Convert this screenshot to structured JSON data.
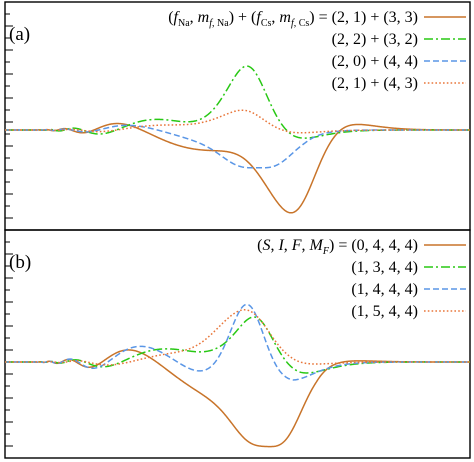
{
  "colors": {
    "c1": "#c8742a",
    "c2": "#28c814",
    "c3": "#5a96e6",
    "c4": "#e8763a"
  },
  "chart_data": [
    {
      "type": "line",
      "panel_label": "(a)",
      "legend_position": "top-right",
      "legend_header_html": "(<tspan font-style='italic'>f</tspan><tspan font-size='10' dy='4'>Na</tspan><tspan dy='-4'>, </tspan><tspan font-style='italic'>m</tspan><tspan font-size='10' dy='4'><tspan font-style='italic'>f</tspan>, Na</tspan><tspan dy='-4'>) + (</tspan><tspan font-style='italic'>f</tspan><tspan font-size='10' dy='4'>Cs</tspan><tspan dy='-4'>, </tspan><tspan font-style='italic'>m</tspan><tspan font-size='10' dy='4'><tspan font-style='italic'>f</tspan>, Cs</tspan><tspan dy='-4'>) = </tspan>",
      "x": [],
      "series": [
        {
          "name": "(2, 1) + (3, 3)",
          "legend_label": "(2, 1) + (3, 3)",
          "color": "#c8742a",
          "dash": "solid",
          "x_min_peak": 0.615,
          "min_value": -0.92,
          "extrema": [
            [
              0.465,
              0.42
            ],
            [
              0.4,
              -0.22
            ],
            [
              0.35,
              0.18
            ],
            [
              0.31,
              -0.14
            ]
          ]
        },
        {
          "name": "(2, 2) + (3, 2)",
          "legend_label": "(2, 2) + (3, 2)",
          "color": "#28c814",
          "dash": "dashdot",
          "x_min_peak": 0.52,
          "min_value": 0.71,
          "extrema": [
            [
              0.415,
              -0.22
            ],
            [
              0.37,
              0.18
            ]
          ]
        },
        {
          "name": "(2, 0) + (4, 4)",
          "legend_label": "(2, 0) + (4, 4)",
          "color": "#5a96e6",
          "dash": "dashed",
          "x_min_peak": 0.545,
          "min_value": -0.42,
          "extrema": [
            [
              0.45,
              0.17
            ],
            [
              0.4,
              -0.14
            ]
          ]
        },
        {
          "name": "(2, 1) + (4, 3)",
          "legend_label": "(2, 1) + (4, 3)",
          "color": "#e8763a",
          "dash": "dotted",
          "x_min_peak": 0.51,
          "min_value": 0.22,
          "extrema": [
            [
              0.43,
              -0.1
            ]
          ]
        }
      ]
    },
    {
      "type": "line",
      "panel_label": "(b)",
      "legend_position": "top-right",
      "legend_header_html": "(<tspan font-style='italic'>S</tspan>, <tspan font-style='italic'>I</tspan>, <tspan font-style='italic'>F</tspan>, <tspan font-style='italic'>M</tspan><tspan font-size='10' dy='4' font-style='italic'>F</tspan><tspan dy='-4'>) = </tspan>",
      "series": [
        {
          "name": "(0, 4, 4, 4)",
          "legend_label": "(0, 4, 4, 4)",
          "color": "#c8742a",
          "dash": "solid",
          "x_min_peak": 0.57,
          "min_value": -0.94
        },
        {
          "name": "(1, 3, 4, 4)",
          "legend_label": "(1, 3, 4, 4)",
          "color": "#28c814",
          "dash": "dashdot",
          "x_min_peak": 0.535,
          "min_value": 0.5
        },
        {
          "name": "(1, 4, 4, 4)",
          "legend_label": "(1, 4, 4, 4)",
          "color": "#5a96e6",
          "dash": "dashed",
          "x_min_peak": 0.52,
          "min_value": 0.64
        },
        {
          "name": "(1, 5, 4, 4)",
          "legend_label": "(1, 5, 4, 4)",
          "color": "#e8763a",
          "dash": "dotted",
          "x_min_peak": 0.515,
          "min_value": 0.58
        }
      ]
    }
  ]
}
